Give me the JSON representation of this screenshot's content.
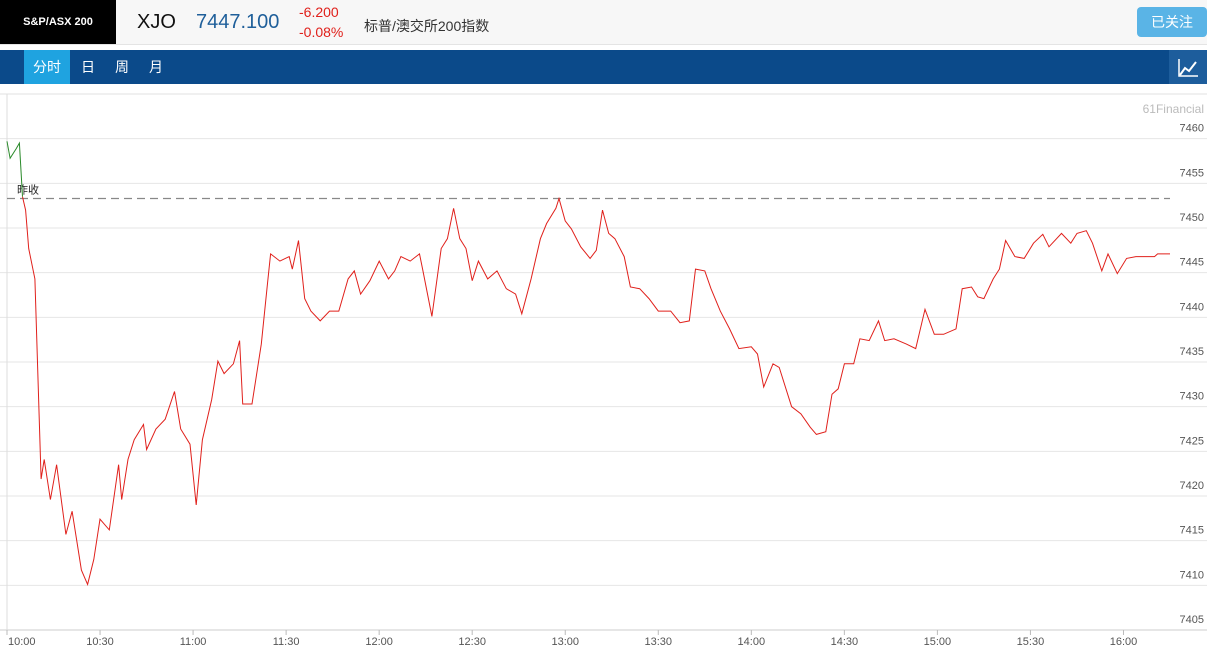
{
  "header": {
    "badge": "S&P/ASX 200",
    "code": "XJO",
    "price": "7447.100",
    "change": "-6.200",
    "change_pct": "-0.08%",
    "name": "标普/澳交所200指数",
    "follow_button": "已关注"
  },
  "tabs": {
    "items": [
      "分时",
      "日",
      "周",
      "月"
    ],
    "active": 0
  },
  "chart_data": {
    "type": "line",
    "watermark": "61Financial",
    "reference_line": {
      "label": "昨收",
      "value": 7453.3,
      "color": "#888888"
    },
    "xlim": [
      "10:00",
      "16:15"
    ],
    "xticks": [
      "10:00",
      "10:30",
      "11:00",
      "11:30",
      "12:00",
      "12:30",
      "13:00",
      "13:30",
      "14:00",
      "14:30",
      "15:00",
      "15:30",
      "16:00"
    ],
    "ylim": [
      7405,
      7465
    ],
    "yticks": [
      7405,
      7410,
      7415,
      7420,
      7425,
      7430,
      7435,
      7440,
      7445,
      7450,
      7455,
      7460
    ],
    "grid": true,
    "series": [
      {
        "color": "#2a8a2a",
        "x": [
          "10:00",
          "10:01",
          "10:03",
          "10:04",
          "10:05"
        ],
        "values": [
          7459.7,
          7457.8,
          7458.9,
          7459.5,
          7453.5
        ]
      },
      {
        "color": "#e0201b",
        "x": [
          "10:05",
          "10:06",
          "10:07",
          "10:09",
          "10:11",
          "10:12",
          "10:14",
          "10:16",
          "10:19",
          "10:21",
          "10:24",
          "10:26",
          "10:28",
          "10:30",
          "10:33",
          "10:36",
          "10:37",
          "10:39",
          "10:41",
          "10:44",
          "10:45",
          "10:48",
          "10:51",
          "10:54",
          "10:56",
          "10:59",
          "11:01",
          "11:03",
          "11:06",
          "11:08",
          "11:10",
          "11:13",
          "11:15",
          "11:16",
          "11:19",
          "11:22",
          "11:24",
          "11:25",
          "11:28",
          "11:31",
          "11:32",
          "11:34",
          "11:36",
          "11:38",
          "11:41",
          "11:44",
          "11:47",
          "11:50",
          "11:52",
          "11:54",
          "11:57",
          "12:00",
          "12:03",
          "12:05",
          "12:07",
          "12:10",
          "12:13",
          "12:14",
          "12:17",
          "12:20",
          "12:22",
          "12:24",
          "12:26",
          "12:28",
          "12:30",
          "12:32",
          "12:35",
          "12:38",
          "12:41",
          "12:44",
          "12:46",
          "12:49",
          "12:52",
          "12:54",
          "12:57",
          "12:58",
          "13:00",
          "13:02",
          "13:05",
          "13:08",
          "13:10",
          "13:12",
          "13:14",
          "13:16",
          "13:19",
          "13:21",
          "13:24",
          "13:27",
          "13:30",
          "13:34",
          "13:37",
          "13:40",
          "13:42",
          "13:45",
          "13:47",
          "13:50",
          "13:53",
          "13:56",
          "14:00",
          "14:02",
          "14:04",
          "14:07",
          "14:09",
          "14:13",
          "14:16",
          "14:19",
          "14:21",
          "14:24",
          "14:26",
          "14:28",
          "14:30",
          "14:33",
          "14:35",
          "14:38",
          "14:41",
          "14:43",
          "14:46",
          "14:50",
          "14:53",
          "14:56",
          "14:59",
          "15:02",
          "15:06",
          "15:08",
          "15:11",
          "15:13",
          "15:15",
          "15:18",
          "15:20",
          "15:22",
          "15:25",
          "15:28",
          "15:31",
          "15:34",
          "15:36",
          "15:40",
          "15:43",
          "15:45",
          "15:48",
          "15:50",
          "15:53",
          "15:55",
          "15:58",
          "16:01",
          "16:04",
          "16:10",
          "16:11",
          "16:15"
        ],
        "values": [
          7453.5,
          7452,
          7447.7,
          7444.3,
          7421.9,
          7424.1,
          7419.6,
          7423.5,
          7415.7,
          7418.3,
          7411.7,
          7410.1,
          7412.9,
          7417.4,
          7416.2,
          7423.5,
          7419.6,
          7424.1,
          7426.3,
          7428,
          7425.2,
          7427.5,
          7428.6,
          7431.7,
          7427.5,
          7425.8,
          7419,
          7426.3,
          7430.8,
          7435.1,
          7433.7,
          7434.8,
          7437.4,
          7430.3,
          7430.3,
          7437,
          7443.8,
          7447.1,
          7446.3,
          7446.8,
          7445.4,
          7448.6,
          7442.1,
          7440.7,
          7439.6,
          7440.7,
          7440.7,
          7444.3,
          7445.2,
          7442.6,
          7444.1,
          7446.3,
          7444.3,
          7445.2,
          7446.8,
          7446.3,
          7447.1,
          7445.4,
          7440.1,
          7447.7,
          7448.8,
          7452.2,
          7448.8,
          7447.7,
          7444.1,
          7446.3,
          7444.3,
          7445.2,
          7443.2,
          7442.6,
          7440.4,
          7444.3,
          7448.8,
          7450.5,
          7452.2,
          7453.3,
          7450.8,
          7449.9,
          7447.9,
          7446.6,
          7447.5,
          7452,
          7449.4,
          7448.8,
          7446.8,
          7443.4,
          7443.2,
          7442.1,
          7440.7,
          7440.7,
          7439.4,
          7439.6,
          7445.4,
          7445.2,
          7443.2,
          7440.7,
          7438.7,
          7436.5,
          7436.7,
          7435.9,
          7432.2,
          7434.8,
          7434.4,
          7430,
          7429.2,
          7427.7,
          7426.9,
          7427.2,
          7431.4,
          7432,
          7434.8,
          7434.8,
          7437.6,
          7437.4,
          7439.6,
          7437.4,
          7437.6,
          7437,
          7436.5,
          7440.9,
          7438.1,
          7438.1,
          7438.7,
          7443.2,
          7443.4,
          7442.3,
          7442.1,
          7444.3,
          7445.4,
          7448.6,
          7446.8,
          7446.6,
          7448.3,
          7449.3,
          7447.9,
          7449.4,
          7448.3,
          7449.4,
          7449.7,
          7448.3,
          7445.2,
          7447.1,
          7444.9,
          7446.6,
          7446.8,
          7446.8,
          7447.1,
          7447.1
        ]
      }
    ]
  }
}
